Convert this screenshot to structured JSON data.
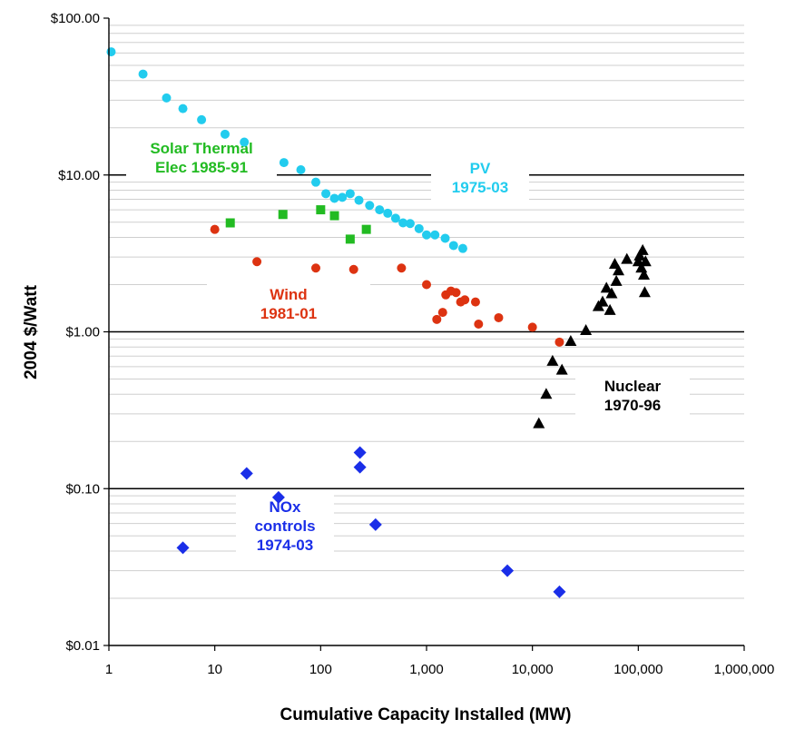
{
  "chart_data": {
    "type": "scatter",
    "xlabel": "Cumulative Capacity Installed (MW)",
    "ylabel": "2004 $/Watt",
    "x_scale": "log",
    "y_scale": "log",
    "xlim": [
      1,
      1000000
    ],
    "ylim": [
      0.01,
      100
    ],
    "x_ticks": [
      {
        "value": 1,
        "label": "1"
      },
      {
        "value": 10,
        "label": "10"
      },
      {
        "value": 100,
        "label": "100"
      },
      {
        "value": 1000,
        "label": "1,000"
      },
      {
        "value": 10000,
        "label": "10,000"
      },
      {
        "value": 100000,
        "label": "100,000"
      },
      {
        "value": 1000000,
        "label": "1,000,000"
      }
    ],
    "y_ticks": [
      {
        "value": 0.01,
        "label": "$0.01"
      },
      {
        "value": 0.1,
        "label": "$0.10"
      },
      {
        "value": 1,
        "label": "$1.00"
      },
      {
        "value": 10,
        "label": "$10.00"
      },
      {
        "value": 100,
        "label": "$100.00"
      }
    ],
    "grid": {
      "major_y": true,
      "minor_y": true,
      "major_y_color": "#000000",
      "minor_y_color": "#cfcfcf"
    },
    "series": [
      {
        "name": "PV",
        "label_lines": [
          "PV",
          "1975-03"
        ],
        "color": "#22ccee",
        "marker": "circle",
        "points": [
          [
            1.05,
            61
          ],
          [
            2.1,
            44
          ],
          [
            3.5,
            31
          ],
          [
            5,
            26.5
          ],
          [
            7.5,
            22.5
          ],
          [
            12.5,
            18.2
          ],
          [
            19,
            16.2
          ],
          [
            45,
            12
          ],
          [
            65,
            10.8
          ],
          [
            90,
            9.0
          ],
          [
            112,
            7.6
          ],
          [
            135,
            7.1
          ],
          [
            160,
            7.2
          ],
          [
            190,
            7.6
          ],
          [
            230,
            6.9
          ],
          [
            290,
            6.4
          ],
          [
            360,
            6.0
          ],
          [
            430,
            5.7
          ],
          [
            510,
            5.3
          ],
          [
            600,
            4.95
          ],
          [
            700,
            4.9
          ],
          [
            850,
            4.55
          ],
          [
            1000,
            4.15
          ],
          [
            1200,
            4.15
          ],
          [
            1500,
            3.95
          ],
          [
            1800,
            3.55
          ],
          [
            2200,
            3.4
          ]
        ]
      },
      {
        "name": "Solar Thermal Elec",
        "label_lines": [
          "Solar Thermal",
          "Elec 1985-91"
        ],
        "color": "#22bb22",
        "marker": "square",
        "points": [
          [
            14,
            4.95
          ],
          [
            44,
            5.6
          ],
          [
            100,
            6.0
          ],
          [
            135,
            5.5
          ],
          [
            190,
            3.9
          ],
          [
            270,
            4.5
          ]
        ]
      },
      {
        "name": "Wind",
        "label_lines": [
          "Wind",
          "1981-01"
        ],
        "color": "#dd3311",
        "marker": "circle",
        "points": [
          [
            10,
            4.5
          ],
          [
            25,
            2.8
          ],
          [
            90,
            2.55
          ],
          [
            205,
            2.5
          ],
          [
            580,
            2.55
          ],
          [
            1000,
            2.0
          ],
          [
            1250,
            1.2
          ],
          [
            1420,
            1.33
          ],
          [
            1520,
            1.72
          ],
          [
            1700,
            1.82
          ],
          [
            1900,
            1.78
          ],
          [
            2100,
            1.55
          ],
          [
            2300,
            1.6
          ],
          [
            2900,
            1.55
          ],
          [
            3100,
            1.12
          ],
          [
            4800,
            1.23
          ],
          [
            10000,
            1.07
          ],
          [
            18000,
            0.86
          ]
        ]
      },
      {
        "name": "Nuclear",
        "label_lines": [
          "Nuclear",
          "1970-96"
        ],
        "color": "#000000",
        "marker": "triangle",
        "points": [
          [
            11500,
            0.26
          ],
          [
            13500,
            0.4
          ],
          [
            15500,
            0.65
          ],
          [
            19000,
            0.57
          ],
          [
            23000,
            0.87
          ],
          [
            32000,
            1.02
          ],
          [
            42000,
            1.45
          ],
          [
            46000,
            1.55
          ],
          [
            50000,
            1.9
          ],
          [
            54000,
            1.37
          ],
          [
            56000,
            1.75
          ],
          [
            60000,
            2.7
          ],
          [
            62000,
            2.1
          ],
          [
            65000,
            2.45
          ],
          [
            78000,
            2.9
          ],
          [
            100000,
            2.8
          ],
          [
            103000,
            3.05
          ],
          [
            107000,
            2.55
          ],
          [
            110000,
            3.3
          ],
          [
            113000,
            2.3
          ],
          [
            115000,
            1.78
          ],
          [
            117000,
            2.8
          ]
        ]
      },
      {
        "name": "NOx controls",
        "label_lines": [
          "NOx",
          "controls",
          "1974-03"
        ],
        "color": "#1a2ee8",
        "marker": "diamond",
        "points": [
          [
            5,
            0.042
          ],
          [
            20,
            0.125
          ],
          [
            40,
            0.088
          ],
          [
            235,
            0.17
          ],
          [
            235,
            0.137
          ],
          [
            330,
            0.059
          ],
          [
            5800,
            0.03
          ],
          [
            18000,
            0.022
          ]
        ]
      }
    ]
  }
}
